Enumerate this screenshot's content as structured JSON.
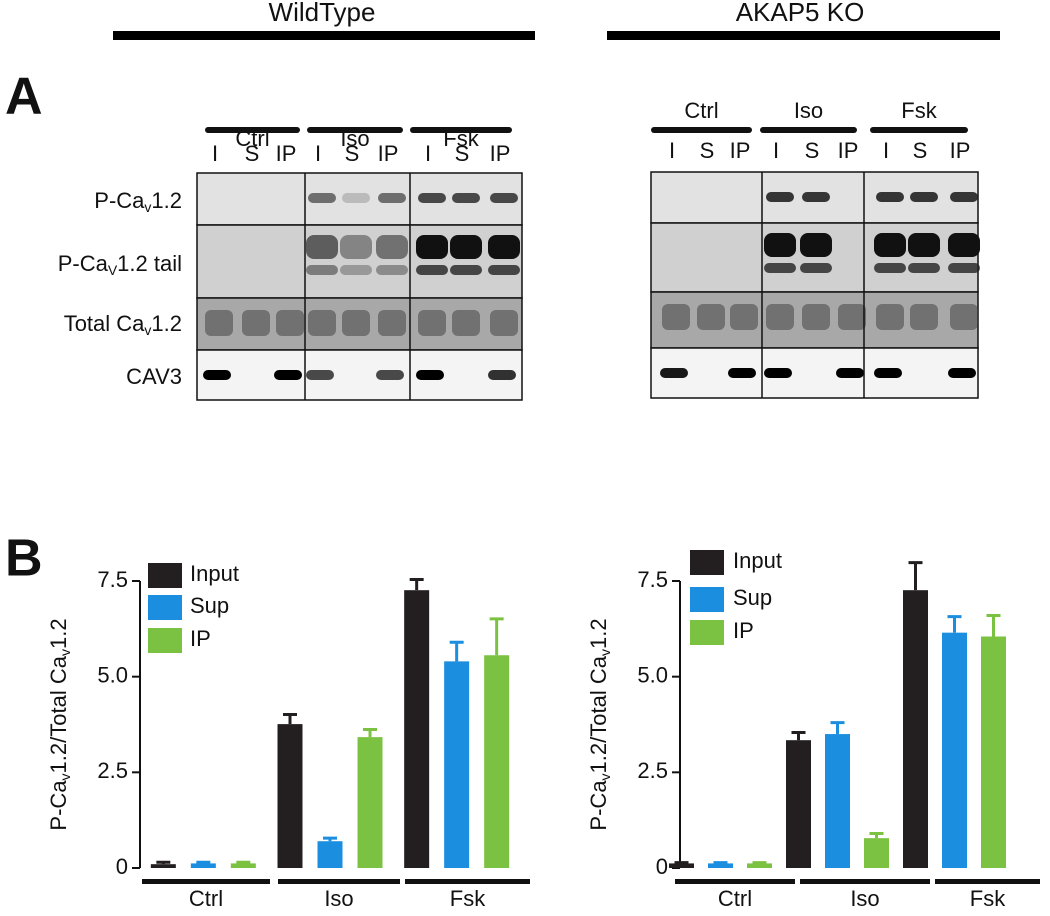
{
  "headers": [
    "WildType",
    "AKAP5 KO"
  ],
  "panels": [
    "A",
    "B"
  ],
  "blot": {
    "conditions": [
      "Ctrl",
      "Iso",
      "Fsk"
    ],
    "lanes": [
      "I",
      "S",
      "IP"
    ],
    "row_labels": [
      [
        "P-Ca",
        "v",
        "1.2"
      ],
      [
        "P-Ca",
        "V",
        "1.2 tail"
      ],
      [
        "Total Ca",
        "v",
        "1.2"
      ],
      [
        "CAV3"
      ]
    ]
  },
  "chart_data": [
    {
      "type": "bar",
      "ylabel": [
        "P-Ca",
        "v",
        "1.2/Total Ca",
        "v",
        "1.2"
      ],
      "categories": [
        "Ctrl",
        "Iso",
        "Fsk"
      ],
      "series": [
        {
          "name": "Input",
          "color": "#231f20",
          "values": [
            0.1,
            3.76,
            7.26
          ],
          "errors": [
            0.05,
            0.25,
            0.28
          ]
        },
        {
          "name": "Sup",
          "color": "#1b8ee0",
          "values": [
            0.12,
            0.7,
            5.4
          ],
          "errors": [
            0.03,
            0.08,
            0.5
          ]
        },
        {
          "name": "IP",
          "color": "#7cc242",
          "values": [
            0.12,
            3.42,
            5.56
          ],
          "errors": [
            0.03,
            0.2,
            0.95
          ]
        }
      ],
      "ylim": [
        0,
        7.5
      ],
      "yticks": [
        0,
        2.5,
        {
          "value": 5,
          "label": "5.0"
        },
        7.5
      ]
    },
    {
      "type": "bar",
      "ylabel": [
        "P-Ca",
        "v",
        "1.2/Total Ca",
        "v",
        "1.2"
      ],
      "categories": [
        "Ctrl",
        "Iso",
        "Fsk"
      ],
      "series": [
        {
          "name": "Input",
          "color": "#231f20",
          "values": [
            0.12,
            3.34,
            7.26
          ],
          "errors": [
            0.02,
            0.2,
            0.72
          ]
        },
        {
          "name": "Sup",
          "color": "#1b8ee0",
          "values": [
            0.12,
            3.5,
            6.15
          ],
          "errors": [
            0.02,
            0.3,
            0.42
          ]
        },
        {
          "name": "IP",
          "color": "#7cc242",
          "values": [
            0.12,
            0.78,
            6.05
          ],
          "errors": [
            0.02,
            0.12,
            0.55
          ]
        }
      ],
      "ylim": [
        0,
        7.5
      ],
      "yticks": [
        0,
        2.5,
        {
          "value": 5,
          "label": "5.0"
        },
        7.5
      ]
    }
  ]
}
